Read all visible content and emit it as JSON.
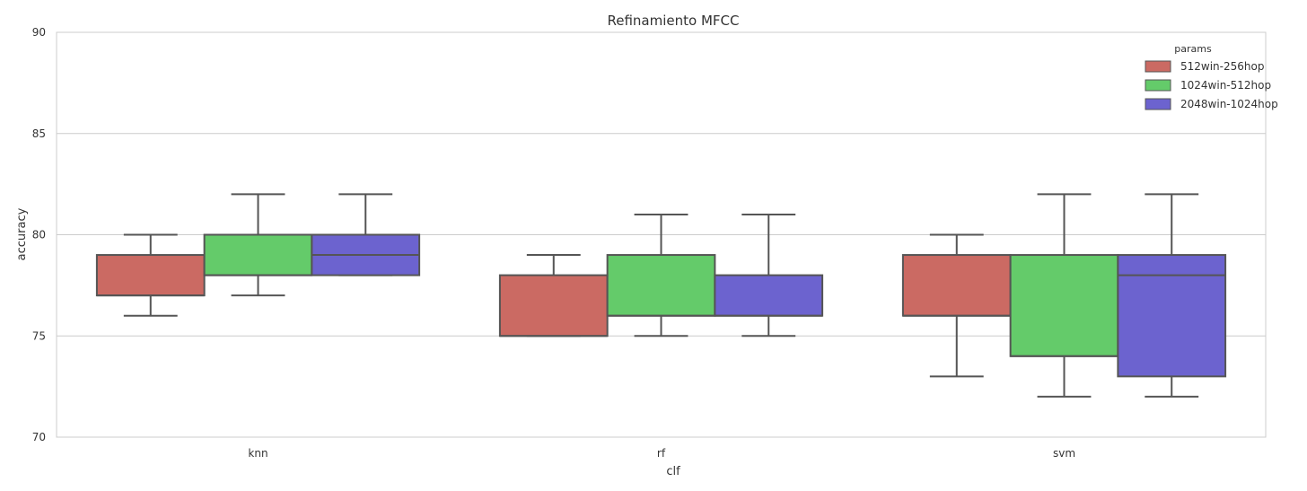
{
  "chart_data": {
    "type": "box",
    "title": "Refinamiento MFCC",
    "xlabel": "clf",
    "ylabel": "accuracy",
    "ylim": [
      70,
      90
    ],
    "yticks": [
      70,
      75,
      80,
      85,
      90
    ],
    "grid": true,
    "categories": [
      "knn",
      "rf",
      "svm"
    ],
    "legend": {
      "title": "params",
      "placement": "top-right"
    },
    "series": [
      {
        "name": "512win-256hop",
        "color": "#cb6a63",
        "boxes": [
          {
            "whisker_low": 76,
            "q1": 77,
            "median": 77,
            "q3": 79,
            "whisker_high": 80
          },
          {
            "whisker_low": 75,
            "q1": 75,
            "median": 75,
            "q3": 78,
            "whisker_high": 79
          },
          {
            "whisker_low": 73,
            "q1": 76,
            "median": 76,
            "q3": 79,
            "whisker_high": 80
          }
        ]
      },
      {
        "name": "1024win-512hop",
        "color": "#64cb6a",
        "boxes": [
          {
            "whisker_low": 77,
            "q1": 78,
            "median": 78,
            "q3": 80,
            "whisker_high": 82
          },
          {
            "whisker_low": 75,
            "q1": 76,
            "median": 76,
            "q3": 79,
            "whisker_high": 81
          },
          {
            "whisker_low": 72,
            "q1": 74,
            "median": 74,
            "q3": 79,
            "whisker_high": 82
          }
        ]
      },
      {
        "name": "2048win-1024hop",
        "color": "#6c63cf",
        "boxes": [
          {
            "whisker_low": 78,
            "q1": 78,
            "median": 79,
            "q3": 80,
            "whisker_high": 82
          },
          {
            "whisker_low": 75,
            "q1": 76,
            "median": 76,
            "q3": 78,
            "whisker_high": 81
          },
          {
            "whisker_low": 72,
            "q1": 73,
            "median": 78,
            "q3": 79,
            "whisker_high": 82
          }
        ]
      }
    ]
  }
}
